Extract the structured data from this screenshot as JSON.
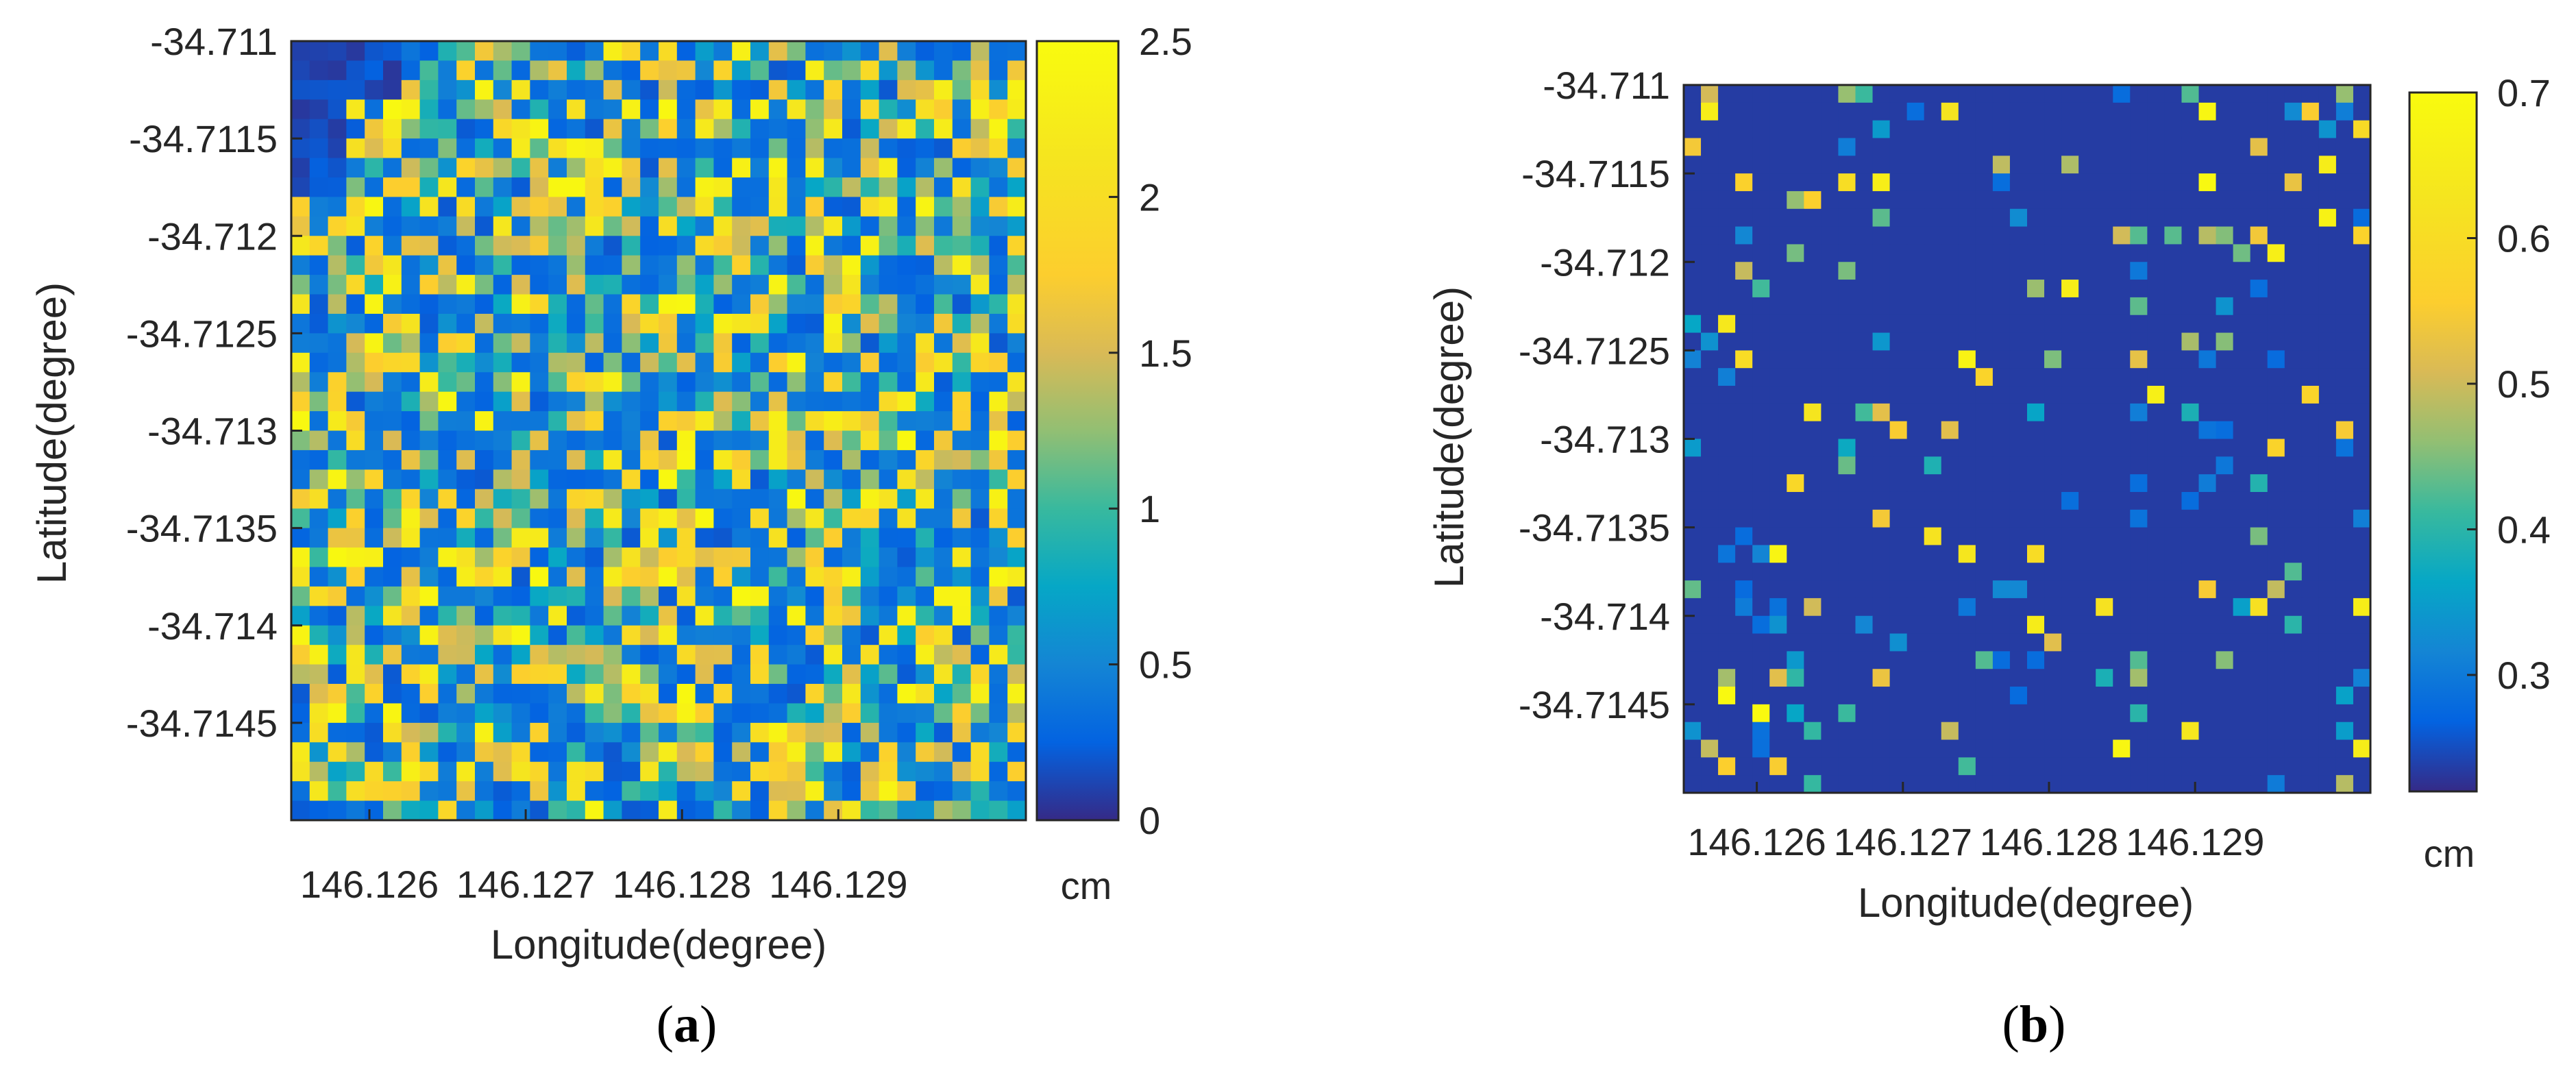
{
  "chart_data": [
    {
      "type": "heatmap",
      "panel_label": "a",
      "panel_label_full": "(a)",
      "xlabel": "Longitude(degree)",
      "ylabel": "Latitude(degree)",
      "xlim": [
        146.1255,
        146.1302
      ],
      "ylim": [
        -34.715,
        -34.711
      ],
      "x_ticks": [
        146.126,
        146.127,
        146.128,
        146.129
      ],
      "x_tick_labels": [
        "146.126",
        "146.127",
        "146.128",
        "146.129"
      ],
      "y_ticks": [
        -34.711,
        -34.7115,
        -34.712,
        -34.7125,
        -34.713,
        -34.7135,
        -34.714,
        -34.7145
      ],
      "y_tick_labels": [
        "-34.711",
        "-34.7115",
        "-34.712",
        "-34.7125",
        "-34.713",
        "-34.7135",
        "-34.714",
        "-34.7145"
      ],
      "colorbar": {
        "label": "cm",
        "range": [
          0,
          2.5
        ],
        "ticks": [
          0,
          0.5,
          1,
          1.5,
          2,
          2.5
        ],
        "tick_labels": [
          "0",
          "0.5",
          "1",
          "1.5",
          "2",
          "2.5"
        ],
        "colormap": "parula"
      },
      "grid": {
        "rows": 40,
        "cols": 40,
        "seed": 11,
        "background": 0.25,
        "description": "dense random speckle of values between 0 and 2.5 cm across the whole grid"
      }
    },
    {
      "type": "heatmap",
      "panel_label": "b",
      "panel_label_full": "(b)",
      "xlabel": "Longitude(degree)",
      "ylabel": "Latitude(degree)",
      "xlim": [
        146.1255,
        146.1302
      ],
      "ylim": [
        -34.715,
        -34.711
      ],
      "x_ticks": [
        146.126,
        146.127,
        146.128,
        146.129
      ],
      "x_tick_labels": [
        "146.126",
        "146.127",
        "146.128",
        "146.129"
      ],
      "y_ticks": [
        -34.711,
        -34.7115,
        -34.712,
        -34.7125,
        -34.713,
        -34.7135,
        -34.714,
        -34.7145
      ],
      "y_tick_labels": [
        "-34.711",
        "-34.7115",
        "-34.712",
        "-34.7125",
        "-34.713",
        "-34.7135",
        "-34.714",
        "-34.7145"
      ],
      "colorbar": {
        "label": "cm",
        "range": [
          0.22,
          0.7
        ],
        "ticks": [
          0.3,
          0.4,
          0.5,
          0.6,
          0.7
        ],
        "tick_labels": [
          "0.3",
          "0.4",
          "0.5",
          "0.6",
          "0.7"
        ],
        "colormap": "parula"
      },
      "grid": {
        "rows": 40,
        "cols": 40,
        "seed": 29,
        "background": 0.235,
        "description": "mostly uniform low background (~0.24 cm) with sparse isolated cells up to 0.7 cm"
      }
    }
  ]
}
